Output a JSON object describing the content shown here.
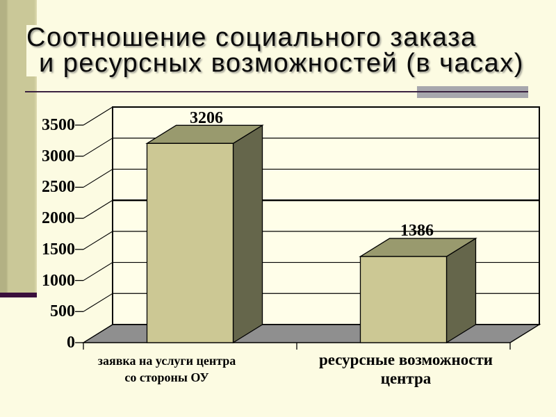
{
  "slide": {
    "title_line1": "Соотношение социального заказа",
    "title_line2": "и ресурсных возможностей (в часах)"
  },
  "chart_data": {
    "type": "bar",
    "style": "3d",
    "title": "Соотношение социального заказа и ресурсных возможностей (в часах)",
    "categories": [
      "заявка на услуги центра со стороны ОУ",
      "ресурсные возможности центра"
    ],
    "category_lines": [
      [
        "заявка на услуги центра",
        "со стороны ОУ"
      ],
      [
        "ресурсные возможности",
        "центра"
      ]
    ],
    "values": [
      3206,
      1386
    ],
    "xlabel": "",
    "ylabel": "",
    "ylim": [
      0,
      3500
    ],
    "ytick_step": 500,
    "yticks": [
      "3500",
      "3000",
      "2500",
      "2000",
      "1500",
      "1000",
      "500",
      "0"
    ],
    "bold_gridline": 2000,
    "grid": true,
    "legend": "none",
    "colors": {
      "bar_front": "#ccc894",
      "bar_top": "#999a6e",
      "bar_side": "#65664b",
      "floor": "#8f8f8f",
      "wall": "#fffee9",
      "line": "#000000"
    }
  },
  "theme": {
    "background": "#fcfbe2",
    "sidebar": "#cac898",
    "sidebar_band": "#3a0f3c",
    "underline": "#3a2240",
    "accent_rect": "#a7a7ad"
  }
}
